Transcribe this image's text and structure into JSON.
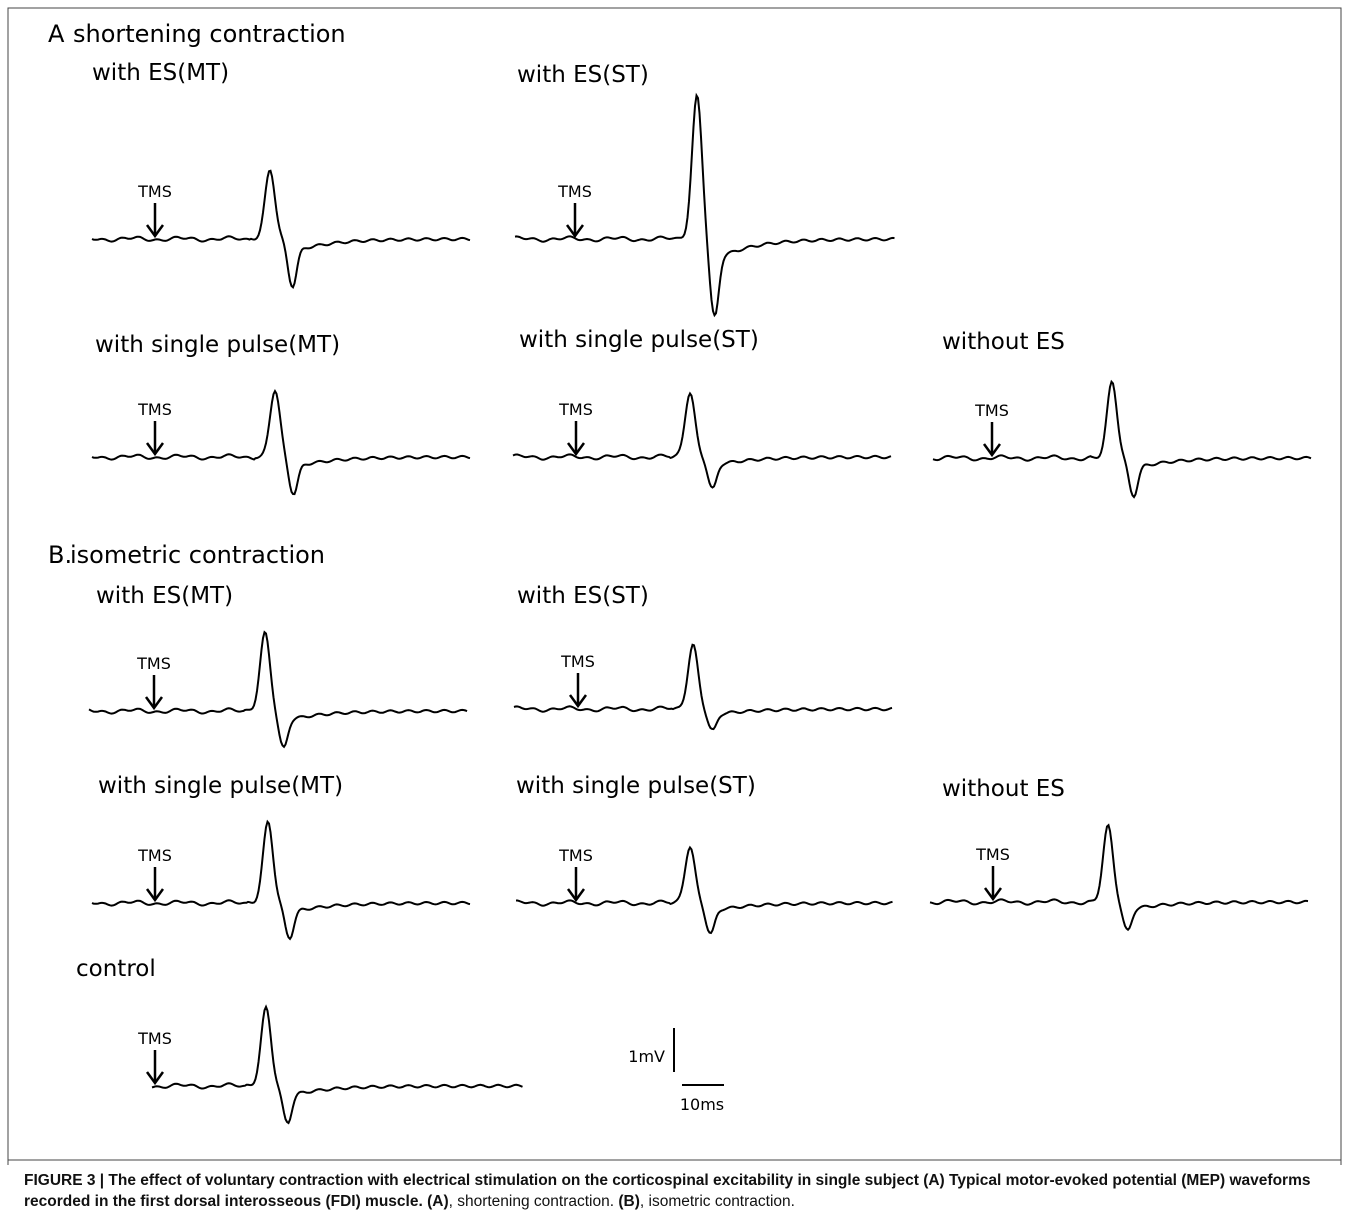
{
  "sections": [
    {
      "letter": "A",
      "title": "shortening contraction",
      "panels": [
        {
          "label": "with ES(MT)",
          "marker": "TMS"
        },
        {
          "label": "with ES(ST)",
          "marker": "TMS"
        },
        {
          "label": "with single pulse(MT)",
          "marker": "TMS"
        },
        {
          "label": "with single pulse(ST)",
          "marker": "TMS"
        },
        {
          "label": "without ES",
          "marker": "TMS"
        }
      ]
    },
    {
      "letter": "B.",
      "title": "isometric contraction",
      "panels": [
        {
          "label": "with ES(MT)",
          "marker": "TMS"
        },
        {
          "label": "with ES(ST)",
          "marker": "TMS"
        },
        {
          "label": "with single pulse(MT)",
          "marker": "TMS"
        },
        {
          "label": "with single pulse(ST)",
          "marker": "TMS"
        },
        {
          "label": "without ES",
          "marker": "TMS"
        }
      ]
    }
  ],
  "control": {
    "label": "control",
    "marker": "TMS"
  },
  "scale_bar": {
    "vertical": "1mV",
    "horizontal": "10ms"
  },
  "caption": [
    "FIGURE 3 | The effect of voluntary contraction with electrical stimulation on the corticospinal excitability in single subject (A) Typical motor-evoked potential (MEP) waveforms recorded in the first dorsal interosseous (FDI) muscle. (A)",
    ", shortening contraction. ",
    "(B)",
    ", isometric contraction."
  ]
}
